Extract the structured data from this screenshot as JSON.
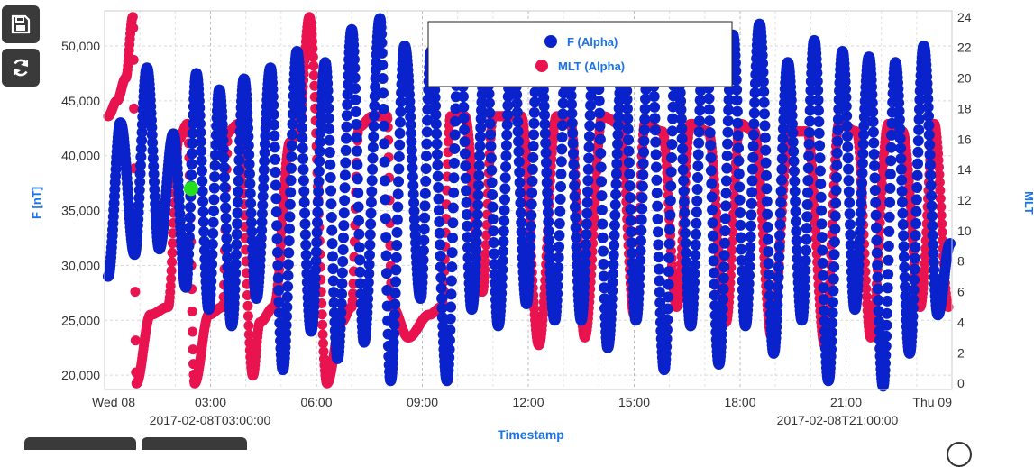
{
  "toolbar": {
    "save_icon": "floppy-disk-icon",
    "refresh_icon": "refresh-icon"
  },
  "chart_data": {
    "type": "scatter",
    "xlabel": "Timestamp",
    "ylabel_left": "F [nT]",
    "ylabel_right": "MLT",
    "ylim_left": [
      18700,
      53200
    ],
    "ylim_right": [
      -0.4,
      24.4
    ],
    "x_ticks": [
      "Wed 08",
      "03:00",
      "06:00",
      "09:00",
      "12:00",
      "15:00",
      "18:00",
      "21:00",
      "Thu 09"
    ],
    "y_left_ticks": [
      "20,000",
      "25,000",
      "30,000",
      "35,000",
      "40,000",
      "45,000",
      "50,000"
    ],
    "y_right_ticks": [
      "0",
      "2",
      "4",
      "6",
      "8",
      "10",
      "12",
      "14",
      "16",
      "18",
      "20",
      "22",
      "24"
    ],
    "date_annotations": [
      "2017-02-08T03:00:00",
      "2017-02-08T21:00:00"
    ],
    "legend": [
      {
        "name": "F (Alpha)",
        "color": "#0a22cc"
      },
      {
        "name": "MLT (Alpha)",
        "color": "#e8134f"
      }
    ],
    "highlight": {
      "x_hours": 2.45,
      "y": 37000,
      "color": "#22e01e"
    },
    "grid": true,
    "series": [
      {
        "name": "F (Alpha)",
        "axis": "left",
        "color": "#0a22cc",
        "x_hours": [
          0.1,
          0.45,
          0.85,
          1.2,
          1.55,
          1.95,
          2.3,
          2.6,
          2.95,
          3.25,
          3.6,
          3.95,
          4.3,
          4.7,
          5.05,
          5.45,
          5.85,
          6.25,
          6.6,
          7.0,
          7.35,
          7.8,
          8.1,
          8.5,
          8.95,
          9.25,
          9.7,
          10.05,
          10.4,
          10.8,
          11.15,
          11.55,
          11.95,
          12.3,
          12.75,
          13.1,
          13.5,
          13.9,
          14.25,
          14.7,
          15.05,
          15.45,
          15.85,
          16.2,
          16.6,
          17.0,
          17.4,
          17.8,
          18.15,
          18.55,
          18.95,
          19.35,
          19.75,
          20.1,
          20.5,
          20.9,
          21.25,
          21.65,
          22.05,
          22.4,
          22.8,
          23.2,
          23.6,
          23.95
        ],
        "values": [
          29000,
          43000,
          31000,
          48000,
          31500,
          42000,
          28000,
          47500,
          26000,
          46000,
          24500,
          47000,
          27000,
          48000,
          20500,
          49500,
          24000,
          48500,
          21500,
          51500,
          23000,
          52500,
          19500,
          50000,
          27000,
          49500,
          19500,
          51000,
          26000,
          49500,
          24500,
          50500,
          26500,
          51000,
          25000,
          50500,
          25000,
          51500,
          22500,
          49500,
          25000,
          51500,
          20500,
          50000,
          24500,
          51500,
          21000,
          51000,
          24500,
          52000,
          22000,
          48500,
          25000,
          50500,
          19500,
          49500,
          26000,
          49000,
          19000,
          48500,
          22000,
          50000,
          25500,
          32000
        ]
      },
      {
        "name": "MLT (Alpha)",
        "axis": "right",
        "color": "#e8134f",
        "x_hours": [
          0.1,
          0.35,
          0.6,
          0.8,
          0.9,
          1.3,
          1.8,
          2.1,
          2.35,
          2.55,
          2.95,
          3.35,
          3.5,
          3.8,
          4.2,
          4.4,
          4.8,
          5.25,
          5.5,
          5.8,
          6.3,
          6.7,
          7.0,
          7.2,
          7.6,
          8.0,
          8.15,
          8.6,
          9.2,
          9.55,
          9.8,
          10.2,
          10.7,
          11.0,
          11.4,
          11.8,
          12.3,
          12.8,
          13.2,
          13.6,
          14.1,
          14.6,
          15.0,
          15.3,
          15.8,
          16.2,
          16.6,
          17.1,
          17.6,
          18.0,
          18.4,
          18.9,
          19.4,
          19.9,
          20.4,
          20.8,
          21.3,
          21.7,
          22.2,
          22.6,
          23.1,
          23.5,
          23.9
        ],
        "values": [
          17.5,
          18.5,
          20,
          24,
          0,
          4.5,
          5,
          16,
          17,
          0,
          4.5,
          5,
          16.5,
          17,
          0.5,
          4,
          5,
          15.8,
          17,
          24,
          0,
          4,
          5,
          16.8,
          17.5,
          17.5,
          5,
          3,
          4.5,
          5,
          17.5,
          17.5,
          6,
          17.5,
          17.5,
          17.5,
          2.5,
          17.5,
          17,
          3,
          17.5,
          17,
          4.5,
          17,
          16.5,
          5,
          17,
          16.5,
          4,
          17,
          16.5,
          3,
          16.5,
          16.5,
          2.5,
          17,
          16.5,
          3,
          17,
          16.5,
          5,
          17,
          5
        ]
      }
    ]
  }
}
